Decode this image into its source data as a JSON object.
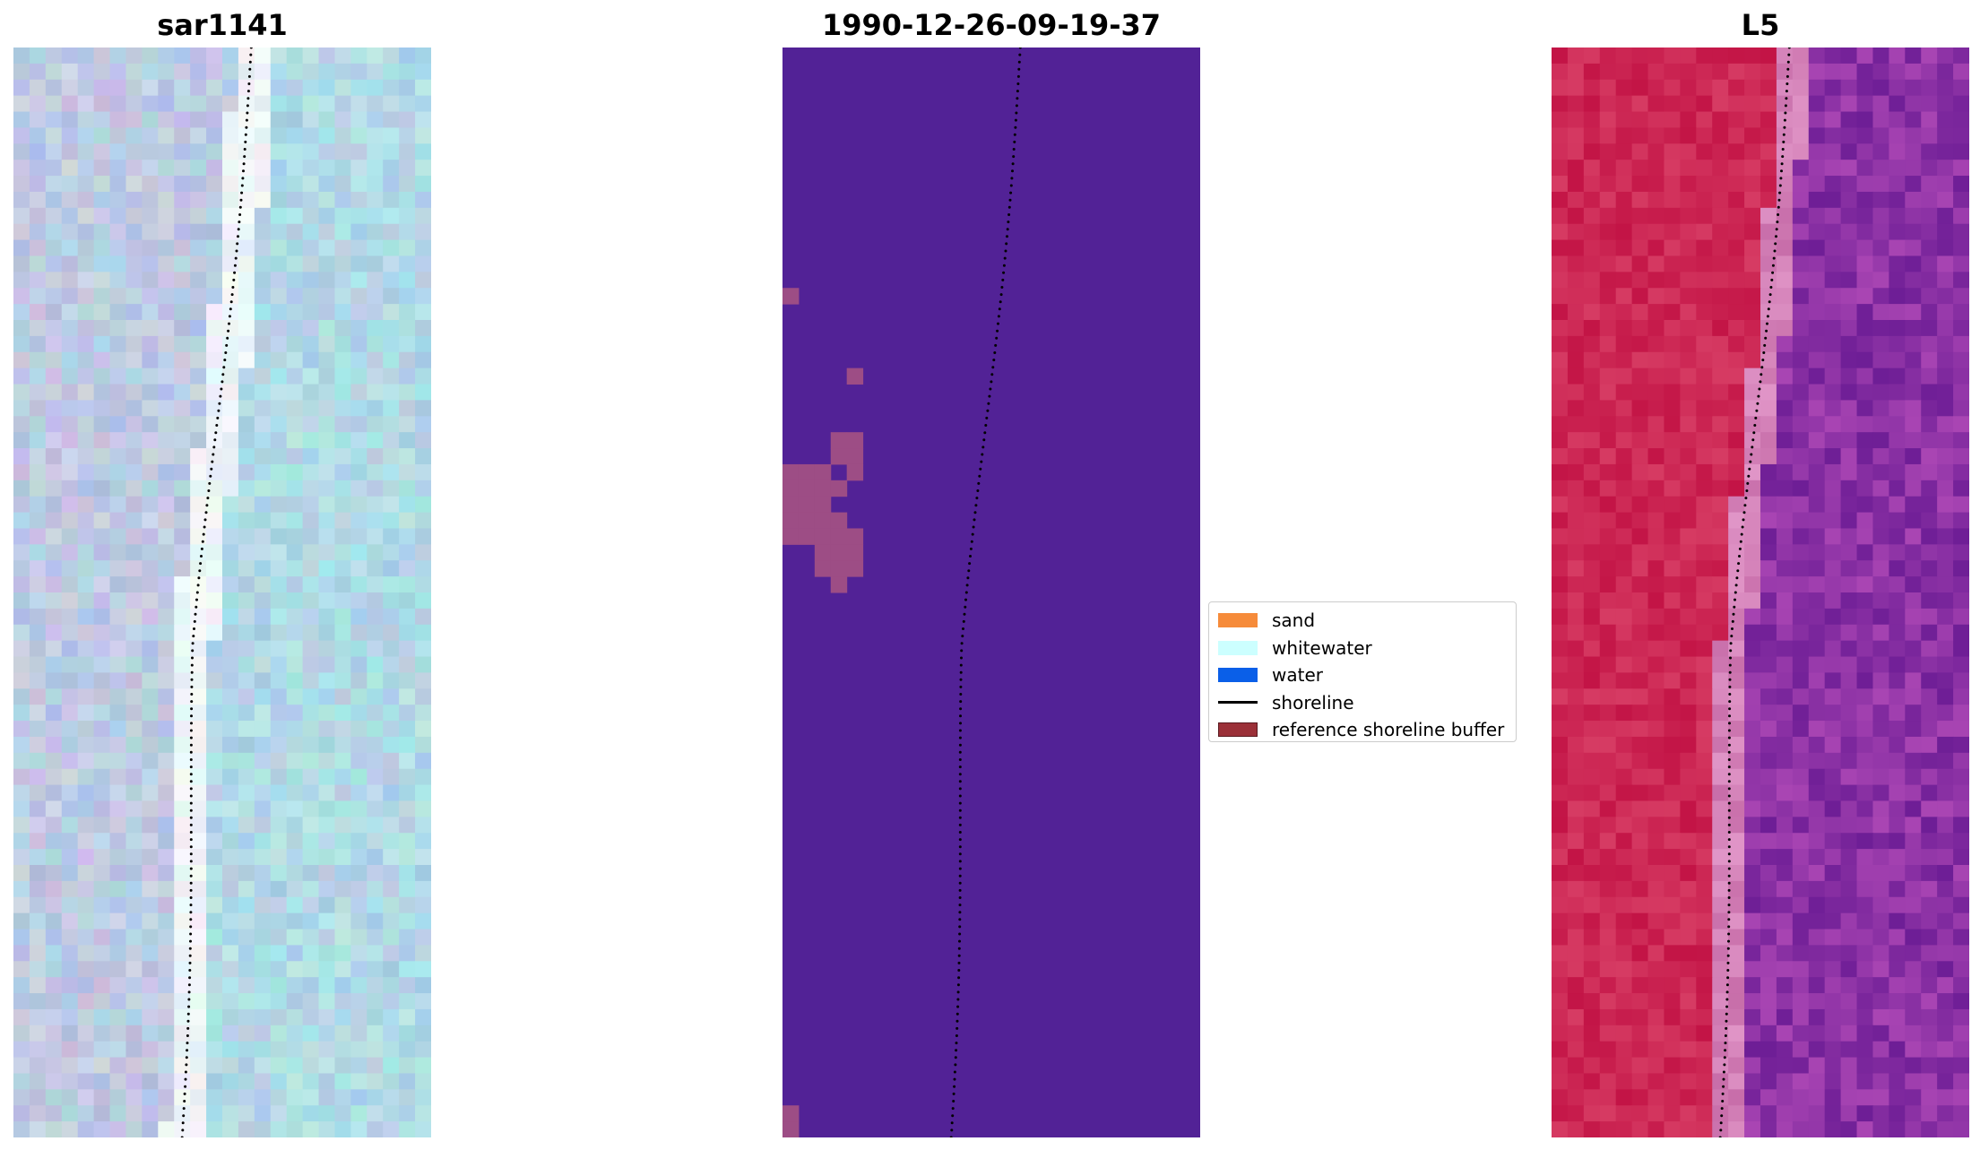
{
  "panels": [
    {
      "title": "sar1141"
    },
    {
      "title": "1990-12-26-09-19-37"
    },
    {
      "title": "L5"
    }
  ],
  "legend": {
    "items": [
      {
        "label": "sand",
        "color": "#f68b3a",
        "kind": "patch"
      },
      {
        "label": "whitewater",
        "color": "#ccffff",
        "kind": "patch"
      },
      {
        "label": "water",
        "color": "#0a5fe8",
        "kind": "patch"
      },
      {
        "label": "shoreline",
        "color": "#000000",
        "kind": "line"
      },
      {
        "label": "reference shoreline buffer",
        "color": "#9b3038",
        "kind": "patch"
      }
    ]
  },
  "colors": {
    "classified_background": "#522296",
    "classified_patch": "#9d4d85",
    "shoreline_dots": "#000000",
    "rgb_land": "#c62350",
    "rgb_water": "#8a3aa0",
    "sar_base": "#b8cbe0"
  }
}
